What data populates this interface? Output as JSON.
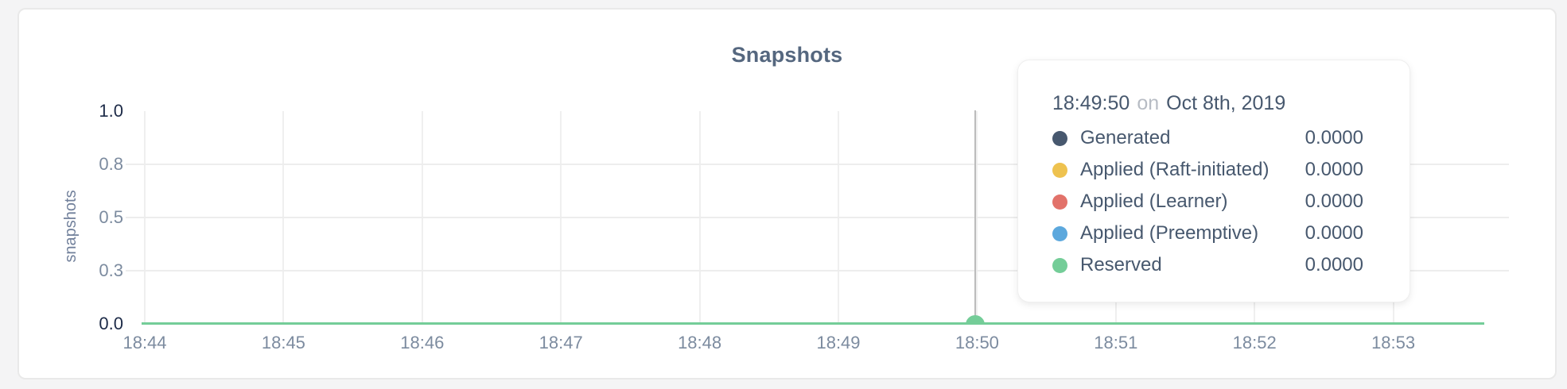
{
  "chart_data": {
    "type": "line",
    "title": "Snapshots",
    "xlabel": "",
    "ylabel": "snapshots",
    "ylim": [
      0.0,
      1.0
    ],
    "grid": true,
    "legend_position": "tooltip",
    "x_ticks": [
      "18:44",
      "18:45",
      "18:46",
      "18:47",
      "18:48",
      "18:49",
      "18:50",
      "18:51",
      "18:52",
      "18:53"
    ],
    "y_ticks": [
      {
        "label": "1.0",
        "value": 1.0,
        "emphasis": true
      },
      {
        "label": "0.8",
        "value": 0.75,
        "emphasis": false
      },
      {
        "label": "0.5",
        "value": 0.5,
        "emphasis": false
      },
      {
        "label": "0.3",
        "value": 0.25,
        "emphasis": false
      },
      {
        "label": "0.0",
        "value": 0.0,
        "emphasis": true
      }
    ],
    "series": [
      {
        "name": "Generated",
        "color": "#47586e",
        "values": [
          0,
          0,
          0,
          0,
          0,
          0,
          0,
          0,
          0,
          0
        ]
      },
      {
        "name": "Applied (Raft-initiated)",
        "color": "#eec24f",
        "values": [
          0,
          0,
          0,
          0,
          0,
          0,
          0,
          0,
          0,
          0
        ]
      },
      {
        "name": "Applied (Learner)",
        "color": "#e2726a",
        "values": [
          0,
          0,
          0,
          0,
          0,
          0,
          0,
          0,
          0,
          0
        ]
      },
      {
        "name": "Applied (Preemptive)",
        "color": "#5ca8dd",
        "values": [
          0,
          0,
          0,
          0,
          0,
          0,
          0,
          0,
          0,
          0
        ]
      },
      {
        "name": "Reserved",
        "color": "#74cd98",
        "values": [
          0,
          0,
          0,
          0,
          0,
          0,
          0,
          0,
          0,
          0
        ]
      }
    ],
    "visible_line_color": "#74cd98",
    "hover": {
      "time": "18:49:50",
      "line_color": "#bcbcbc",
      "dot_color": "#74cd98"
    }
  },
  "tooltip": {
    "time": "18:49:50",
    "separator": "on",
    "date": "Oct 8th, 2019",
    "rows": [
      {
        "label": "Generated",
        "value": "0.0000",
        "color": "#47586e"
      },
      {
        "label": "Applied (Raft-initiated)",
        "value": "0.0000",
        "color": "#eec24f"
      },
      {
        "label": "Applied (Learner)",
        "value": "0.0000",
        "color": "#e2726a"
      },
      {
        "label": "Applied (Preemptive)",
        "value": "0.0000",
        "color": "#5ca8dd"
      },
      {
        "label": "Reserved",
        "value": "0.0000",
        "color": "#74cd98"
      }
    ]
  }
}
